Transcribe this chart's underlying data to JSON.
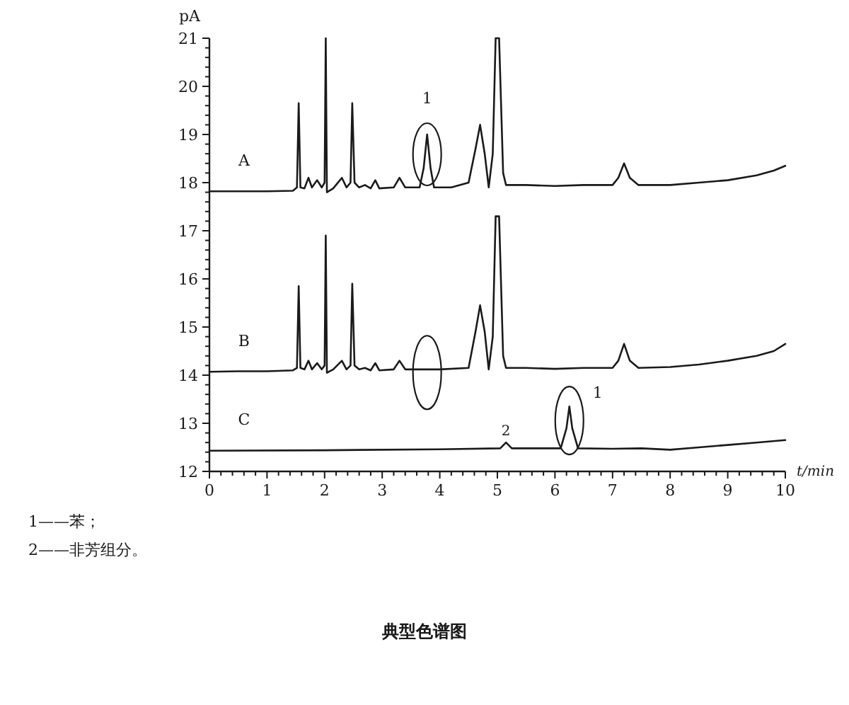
{
  "chart_data": {
    "type": "line",
    "title": "典型色谱图",
    "xlabel": "t/min",
    "ylabel": "pA",
    "xlim": [
      0,
      10
    ],
    "ylim": [
      12,
      21
    ],
    "xticks": [
      0,
      1,
      2,
      3,
      4,
      5,
      6,
      7,
      8,
      9,
      10
    ],
    "yticks": [
      12,
      13,
      14,
      15,
      16,
      17,
      18,
      19,
      20,
      21
    ],
    "line_style": "solid",
    "series": [
      {
        "name": "A",
        "color": "#1a1a1a",
        "x": [
          0,
          0.5,
          1,
          1.45,
          1.52,
          1.55,
          1.58,
          1.65,
          1.72,
          1.78,
          1.87,
          1.95,
          2,
          2.02,
          2.04,
          2.15,
          2.3,
          2.38,
          2.45,
          2.48,
          2.52,
          2.6,
          2.7,
          2.8,
          2.88,
          2.95,
          3.2,
          3.3,
          3.4,
          3.65,
          3.72,
          3.78,
          3.84,
          3.9,
          4.2,
          4.5,
          4.62,
          4.7,
          4.78,
          4.85,
          4.92,
          4.97,
          5.03,
          5.1,
          5.15,
          5.5,
          6,
          6.5,
          7,
          7.1,
          7.2,
          7.3,
          7.45,
          8,
          8.5,
          9,
          9.5,
          9.8,
          10
        ],
        "values": [
          17.82,
          17.82,
          17.82,
          17.83,
          17.9,
          19.65,
          17.9,
          17.88,
          18.1,
          17.9,
          18.05,
          17.9,
          18,
          21,
          17.8,
          17.88,
          18.1,
          17.9,
          18,
          19.65,
          18,
          17.9,
          17.95,
          17.88,
          18.05,
          17.88,
          17.9,
          18.1,
          17.9,
          17.9,
          18.3,
          19,
          18.3,
          17.9,
          17.9,
          18,
          18.7,
          19.2,
          18.6,
          17.9,
          18.6,
          21,
          21,
          18.2,
          17.95,
          17.95,
          17.93,
          17.95,
          17.95,
          18.1,
          18.4,
          18.1,
          17.95,
          17.95,
          18,
          18.05,
          18.15,
          18.25,
          18.35
        ]
      },
      {
        "name": "B",
        "color": "#1a1a1a",
        "x": [
          0,
          0.5,
          1,
          1.45,
          1.52,
          1.55,
          1.58,
          1.65,
          1.72,
          1.78,
          1.87,
          1.95,
          2,
          2.02,
          2.04,
          2.15,
          2.3,
          2.38,
          2.45,
          2.48,
          2.52,
          2.6,
          2.7,
          2.8,
          2.88,
          2.95,
          3.2,
          3.3,
          3.4,
          4,
          4.5,
          4.62,
          4.7,
          4.78,
          4.85,
          4.92,
          4.97,
          5.03,
          5.1,
          5.15,
          5.5,
          6,
          6.5,
          7,
          7.1,
          7.2,
          7.3,
          7.45,
          8,
          8.5,
          9,
          9.5,
          9.8,
          10
        ],
        "values": [
          14.07,
          14.08,
          14.08,
          14.1,
          14.15,
          15.85,
          14.15,
          14.12,
          14.3,
          14.12,
          14.25,
          14.12,
          14.2,
          16.9,
          14.05,
          14.12,
          14.3,
          14.12,
          14.2,
          15.9,
          14.2,
          14.12,
          14.15,
          14.1,
          14.25,
          14.1,
          14.12,
          14.3,
          14.12,
          14.12,
          14.15,
          14.9,
          15.45,
          14.9,
          14.12,
          14.8,
          17.3,
          17.3,
          14.4,
          14.15,
          14.15,
          14.13,
          14.15,
          14.15,
          14.3,
          14.65,
          14.3,
          14.15,
          14.17,
          14.22,
          14.3,
          14.4,
          14.5,
          14.65
        ]
      },
      {
        "name": "C",
        "color": "#1a1a1a",
        "x": [
          0,
          2,
          4,
          5.05,
          5.15,
          5.25,
          6.1,
          6.2,
          6.25,
          6.3,
          6.4,
          7,
          7.5,
          8,
          8.5,
          9,
          9.5,
          10
        ],
        "values": [
          12.43,
          12.44,
          12.46,
          12.48,
          12.6,
          12.48,
          12.48,
          12.9,
          13.35,
          12.9,
          12.48,
          12.47,
          12.48,
          12.45,
          12.5,
          12.55,
          12.6,
          12.65
        ]
      }
    ],
    "annotations": [
      {
        "text": "1",
        "x": 3.78,
        "y": 19
      },
      {
        "text": "1",
        "x": 6.25,
        "y": 13.35
      },
      {
        "text": "2",
        "x": 5.15,
        "y": 12.6
      },
      "1——苯；",
      "2——非芳组分。"
    ]
  }
}
